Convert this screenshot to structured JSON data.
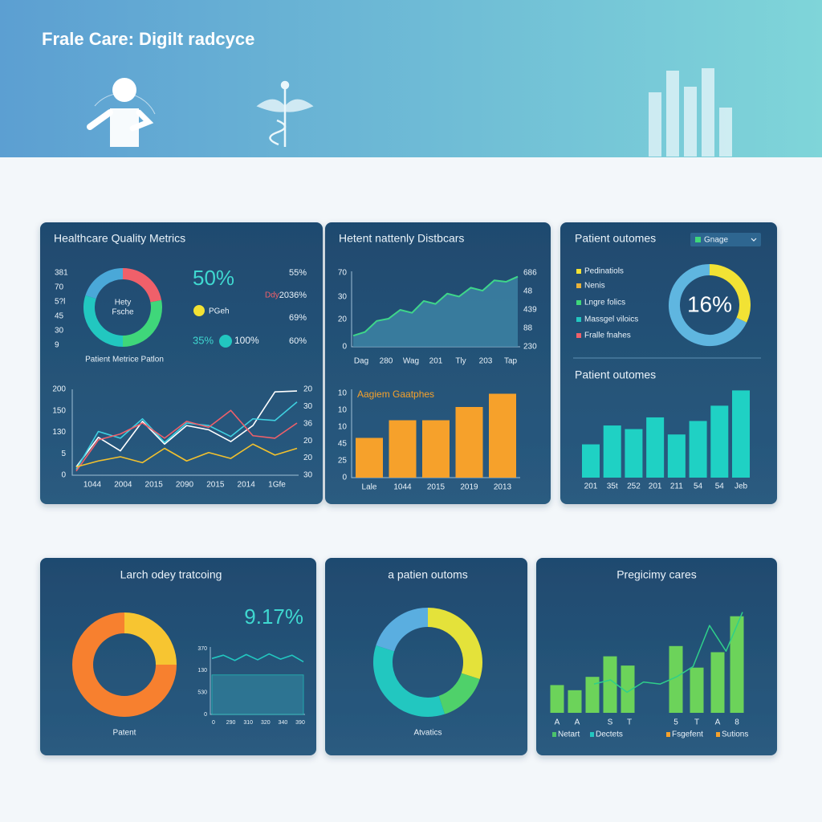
{
  "header": {
    "title": "Frale Care: Digilt radcyce"
  },
  "quality": {
    "title": "Healthcare Quality Metrics",
    "axis_labels": [
      "381",
      "70",
      "5?l",
      "45",
      "30",
      "9"
    ],
    "donut": {
      "label": [
        "Hety",
        "Fsche"
      ],
      "values": [
        22,
        28,
        30,
        20
      ],
      "colors": [
        "#f0606a",
        "#3fd77a",
        "#22c7c0",
        "#4aa8d8"
      ]
    },
    "headline": "50%",
    "legend": "PGeh",
    "stat_a": "35%",
    "stat_b": "100%",
    "tag": "Ddy",
    "column": [
      "55%",
      "2036%",
      "69%",
      "60%"
    ],
    "caption": "Patient Metrice Patlon",
    "trend": {
      "ylim": [
        0,
        100
      ],
      "left_labels": [
        "200",
        "150",
        "130",
        "5",
        "0"
      ],
      "right_labels": [
        "20",
        "30",
        "36",
        "20",
        "20",
        "30"
      ],
      "x_labels": [
        "1044",
        "2004",
        "2015",
        "2090",
        "2015",
        "2014",
        "1Gfe"
      ],
      "series": [
        {
          "color": "#ffffff",
          "values": [
            8,
            43,
            27,
            62,
            35,
            57,
            52,
            38,
            57,
            97,
            98
          ]
        },
        {
          "color": "#3fd0e0",
          "values": [
            5,
            50,
            42,
            65,
            37,
            60,
            57,
            44,
            65,
            63,
            85
          ]
        },
        {
          "color": "#f0606a",
          "values": [
            3,
            40,
            47,
            60,
            42,
            62,
            55,
            75,
            45,
            42,
            60
          ]
        },
        {
          "color": "#f2c12e",
          "values": [
            8,
            15,
            20,
            13,
            30,
            15,
            25,
            18,
            35,
            22,
            30
          ]
        }
      ]
    }
  },
  "distribution": {
    "title": "Hetent nattenly Distbcars",
    "area": {
      "ylim": [
        0,
        100
      ],
      "left_labels": [
        "70",
        "30",
        "20",
        "0"
      ],
      "right_labels": [
        "686",
        "48",
        "439",
        "88",
        "230"
      ],
      "x_labels": [
        "Dag",
        "280",
        "Wag",
        "201",
        "Tly",
        "203",
        "Tap"
      ],
      "color": "#3ed68a",
      "values": [
        15,
        20,
        35,
        38,
        50,
        46,
        62,
        58,
        72,
        68,
        80,
        76,
        90,
        88,
        95
      ]
    },
    "bars": {
      "title": "Aagiem Gaatphes",
      "ylim": [
        0,
        100
      ],
      "left_labels": [
        "10",
        "10",
        "10",
        "45",
        "25",
        "0"
      ],
      "x_labels": [
        "Lale",
        "1044",
        "2015",
        "2019",
        "2013"
      ],
      "color": "#f6a12b",
      "values": [
        45,
        65,
        65,
        80,
        95
      ]
    }
  },
  "outcomes": {
    "title": "Patient outomes",
    "dropdown": "Gnage",
    "legend": [
      {
        "name": "Pedinatiols",
        "color": "#f2e234"
      },
      {
        "name": "Nenis",
        "color": "#e8b23a"
      },
      {
        "name": "Lngre folics",
        "color": "#3fd77a"
      },
      {
        "name": "Massgel viloics",
        "color": "#22c7c0"
      },
      {
        "name": "Fralle fnahes",
        "color": "#f0606a"
      }
    ],
    "donut": {
      "label": "16%",
      "values": [
        32,
        68
      ],
      "colors": [
        "#f2e234",
        "#5fb6e0"
      ]
    },
    "subtitle": "Patient outomes",
    "bars": {
      "ylim": [
        0,
        100
      ],
      "color": "#1fd1c4",
      "values": [
        37,
        58,
        54,
        67,
        48,
        63,
        80,
        97
      ],
      "x_labels": [
        "201",
        "35t",
        "252",
        "201",
        "211",
        "54",
        "54",
        "Jeb"
      ]
    }
  },
  "tracking": {
    "title": "Larch  odey tratcoing",
    "donut": {
      "values": [
        25,
        75
      ],
      "colors": [
        "#f7c531",
        "#f7802f"
      ]
    },
    "headline": "9.17%",
    "mini": {
      "ylim": [
        0,
        100
      ],
      "left_labels": [
        "370",
        "130",
        "530",
        "0"
      ],
      "x_labels": [
        "0",
        "290",
        "310",
        "320",
        "340",
        "390"
      ],
      "color": "#22c7c0",
      "line": [
        85,
        90,
        82,
        91,
        83,
        92,
        84,
        90,
        80
      ],
      "level": 60
    },
    "caption": "Patent"
  },
  "analytics": {
    "title": "a patien outoms",
    "donut": {
      "values": [
        30,
        15,
        35,
        20
      ],
      "colors": [
        "#e4e23a",
        "#4fd16a",
        "#22c7c0",
        "#5aaee0"
      ]
    },
    "caption": "Atvatics"
  },
  "pregnancy": {
    "title": "Pregicimy cares",
    "bars": {
      "ylim": [
        0,
        100
      ],
      "color": "#6cd35a",
      "values": [
        27,
        22,
        35,
        55,
        46,
        65,
        44,
        59,
        94
      ]
    },
    "line": {
      "ylim": [
        0,
        100
      ],
      "color": "#2fcf8a",
      "values": [
        28,
        32,
        20,
        30,
        28,
        35,
        45,
        85,
        60,
        98
      ]
    },
    "x_labels": [
      "A",
      "A",
      "S",
      "T",
      "5",
      "T",
      "A",
      "8"
    ],
    "legend": [
      {
        "name": "Netart",
        "color": "#4cc36b"
      },
      {
        "name": "Dectets",
        "color": "#22c7c0"
      },
      {
        "name": "Fsgefent",
        "color": "#f6a12b"
      },
      {
        "name": "Sutions",
        "color": "#f6a12b"
      }
    ]
  }
}
